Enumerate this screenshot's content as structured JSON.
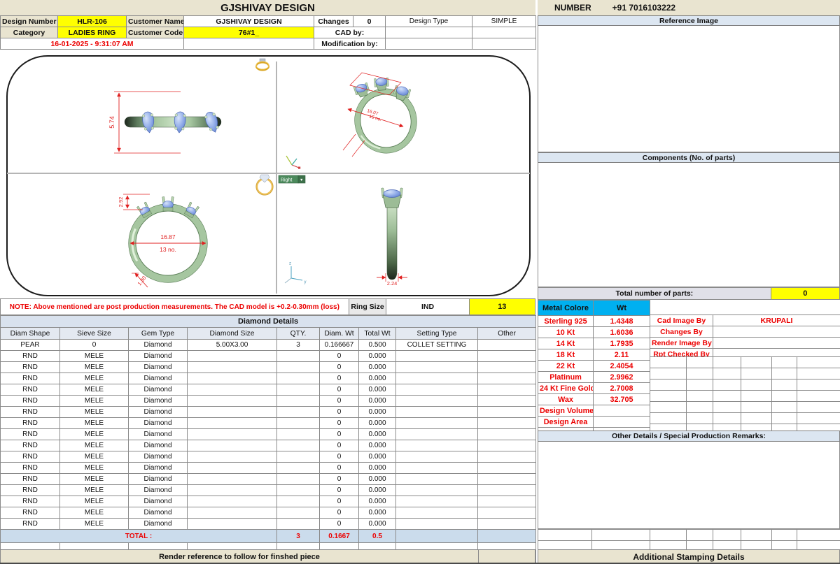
{
  "header": {
    "title": "GJSHIVAY DESIGN",
    "design_number_label": "Design Number",
    "design_number": "HLR-106",
    "customer_name_label": "Customer Name",
    "customer_name": "GJSHIVAY DESIGN",
    "changes_label": "Changes",
    "changes_value": "0",
    "design_type_label": "Design Type",
    "design_type": "SIMPLE",
    "category_label": "Category",
    "category": "LADIES RING",
    "customer_code_label": "Customer Code",
    "customer_code": "76#1_",
    "cad_by_label": "CAD by:",
    "modification_by_label": "Modification by:",
    "datetime": "16-01-2025 - 9:31:07 AM",
    "number_label": "NUMBER",
    "phone": "+91 7016103222"
  },
  "viewport": {
    "right_label": "Right",
    "dims": {
      "band_width": "5.74",
      "persp_diameter": "16.07",
      "persp_size_no": "15 no.",
      "front_inner_diameter": "16.87",
      "front_size_no": "13 no.",
      "head_height": "2.92",
      "shank_bottom": "1.30",
      "shank_width": "2.24"
    }
  },
  "note_row": {
    "note": "NOTE: Above mentioned are post production measurements. The CAD model is +0.2-0.30mm (loss)",
    "ring_size_label": "Ring Size",
    "ring_size_std": "IND",
    "ring_size_value": "13"
  },
  "diamond_table": {
    "title": "Diamond Details",
    "columns": [
      "Diam Shape",
      "Sieve Size",
      "Gem Type",
      "Diamond Size",
      "QTY.",
      "Diam. Wt",
      "Total Wt",
      "Setting Type",
      "Other"
    ],
    "rows": [
      [
        "PEAR",
        "0",
        "Diamond",
        "5.00X3.00",
        "3",
        "0.166667",
        "0.500",
        "COLLET SETTING",
        ""
      ],
      [
        "RND",
        "MELE",
        "Diamond",
        "",
        "",
        "0",
        "0.000",
        "",
        ""
      ],
      [
        "RND",
        "MELE",
        "Diamond",
        "",
        "",
        "0",
        "0.000",
        "",
        ""
      ],
      [
        "RND",
        "MELE",
        "Diamond",
        "",
        "",
        "0",
        "0.000",
        "",
        ""
      ],
      [
        "RND",
        "MELE",
        "Diamond",
        "",
        "",
        "0",
        "0.000",
        "",
        ""
      ],
      [
        "RND",
        "MELE",
        "Diamond",
        "",
        "",
        "0",
        "0.000",
        "",
        ""
      ],
      [
        "RND",
        "MELE",
        "Diamond",
        "",
        "",
        "0",
        "0.000",
        "",
        ""
      ],
      [
        "RND",
        "MELE",
        "Diamond",
        "",
        "",
        "0",
        "0.000",
        "",
        ""
      ],
      [
        "RND",
        "MELE",
        "Diamond",
        "",
        "",
        "0",
        "0.000",
        "",
        ""
      ],
      [
        "RND",
        "MELE",
        "Diamond",
        "",
        "",
        "0",
        "0.000",
        "",
        ""
      ],
      [
        "RND",
        "MELE",
        "Diamond",
        "",
        "",
        "0",
        "0.000",
        "",
        ""
      ],
      [
        "RND",
        "MELE",
        "Diamond",
        "",
        "",
        "0",
        "0.000",
        "",
        ""
      ],
      [
        "RND",
        "MELE",
        "Diamond",
        "",
        "",
        "0",
        "0.000",
        "",
        ""
      ],
      [
        "RND",
        "MELE",
        "Diamond",
        "",
        "",
        "0",
        "0.000",
        "",
        ""
      ],
      [
        "RND",
        "MELE",
        "Diamond",
        "",
        "",
        "0",
        "0.000",
        "",
        ""
      ],
      [
        "RND",
        "MELE",
        "Diamond",
        "",
        "",
        "0",
        "0.000",
        "",
        ""
      ],
      [
        "RND",
        "MELE",
        "Diamond",
        "",
        "",
        "0",
        "0.000",
        "",
        ""
      ]
    ],
    "total_label": "TOTAL :",
    "total_qty": "3",
    "total_diam_wt": "0.1667",
    "total_wt": "0.5"
  },
  "right_panel": {
    "reference_image_label": "Reference Image",
    "components_label": "Components (No. of parts)",
    "total_parts_label": "Total number of parts:",
    "total_parts_value": "0",
    "metal_table": {
      "col1": "Metal Colore",
      "col2": "Wt",
      "rows": [
        [
          "Sterling 925",
          "1.4348"
        ],
        [
          "10 Kt",
          "1.6036"
        ],
        [
          "14 Kt",
          "1.7935"
        ],
        [
          "18 Kt",
          "2.11"
        ],
        [
          "22 Kt",
          "2.4054"
        ],
        [
          "Platinum",
          "2.9962"
        ],
        [
          "24 Kt Fine Gold",
          "2.7008"
        ],
        [
          "Wax",
          "32.705"
        ],
        [
          "Design Volume",
          ""
        ],
        [
          "Design Area",
          ""
        ],
        [
          "",
          ""
        ]
      ]
    },
    "credits": [
      {
        "label": "Cad Image By",
        "value": "KRUPALI"
      },
      {
        "label": "Changes By",
        "value": ""
      },
      {
        "label": "Render Image By",
        "value": ""
      },
      {
        "label": "Rpt Checked By",
        "value": ""
      }
    ],
    "other_details_label": "Other Details / Special Production Remarks:",
    "stamping_label": "Additional Stamping Details"
  },
  "footer": {
    "render_ref": "Render reference to follow for finshed piece"
  },
  "icons": {
    "dropdown_caret": "▼"
  },
  "colors": {
    "accent_yellow": "#ffff00",
    "header_beige": "#e9e4d0",
    "section_blue": "#dce6f1",
    "metal_header_cyan": "#00b0f0",
    "alert_red": "#ec0000",
    "total_row_blue": "#cbdcec"
  }
}
